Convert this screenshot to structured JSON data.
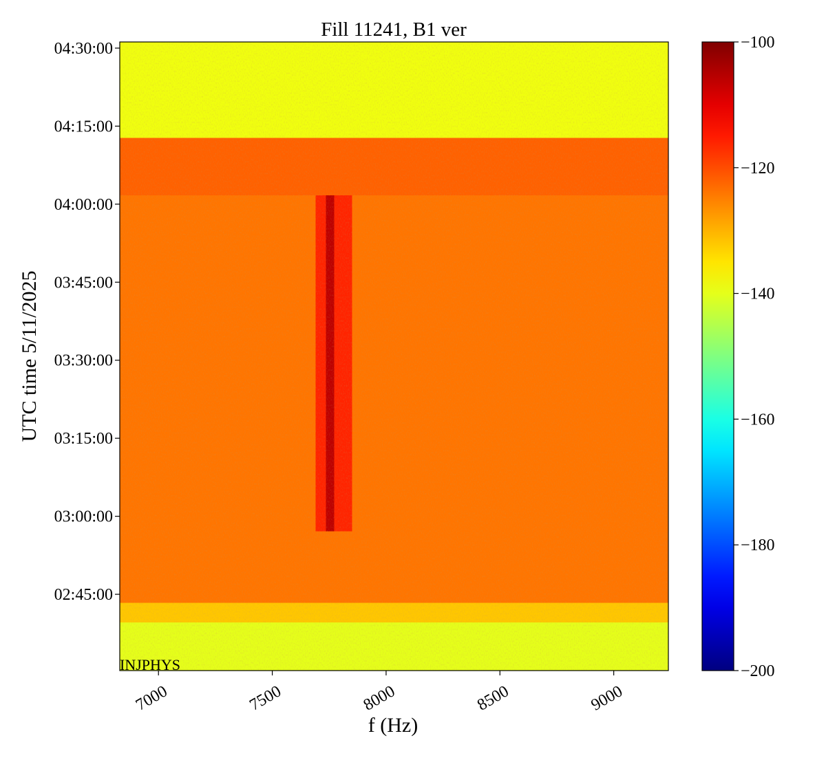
{
  "chart_data": {
    "type": "heatmap",
    "title": "Fill 11241, B1 ver",
    "x_label": "f (Hz)",
    "y_label": "UTC time 5/11/2025",
    "annotation": "INJPHYS",
    "colormap": "jet",
    "x_edges": [
      6830,
      7690,
      7736,
      7772,
      7850,
      9240
    ],
    "y_edges": [
      9020,
      9575,
      9800,
      10626,
      14503,
      15165,
      16271
    ],
    "z": [
      [
        -140,
        -140,
        -140,
        -140,
        -140
      ],
      [
        -132,
        -132,
        -132,
        -132,
        -132
      ],
      [
        -124,
        -124,
        -124,
        -124,
        -124
      ],
      [
        -124,
        -116,
        -106,
        -116,
        -124
      ],
      [
        -122,
        -122,
        -122,
        -122,
        -122
      ],
      [
        -139,
        -139,
        -139,
        -139,
        -139
      ]
    ],
    "xlim": [
      6830,
      9240
    ],
    "xticks": [
      7000,
      7500,
      8000,
      8500,
      9000
    ],
    "ylim": [
      9020,
      16271
    ],
    "yticks": [
      {
        "value": 9900,
        "label": "02:45:00"
      },
      {
        "value": 10800,
        "label": "03:00:00"
      },
      {
        "value": 11700,
        "label": "03:15:00"
      },
      {
        "value": 12600,
        "label": "03:30:00"
      },
      {
        "value": 13500,
        "label": "03:45:00"
      },
      {
        "value": 14400,
        "label": "04:00:00"
      },
      {
        "value": 15300,
        "label": "04:15:00"
      },
      {
        "value": 16200,
        "label": "04:30:00"
      }
    ],
    "clim": [
      -200,
      -100
    ],
    "cticks": [
      {
        "value": -100,
        "label": "−100"
      },
      {
        "value": -120,
        "label": "−120"
      },
      {
        "value": -140,
        "label": "−140"
      },
      {
        "value": -160,
        "label": "−160"
      },
      {
        "value": -180,
        "label": "−180"
      },
      {
        "value": -200,
        "label": "−200"
      }
    ]
  }
}
